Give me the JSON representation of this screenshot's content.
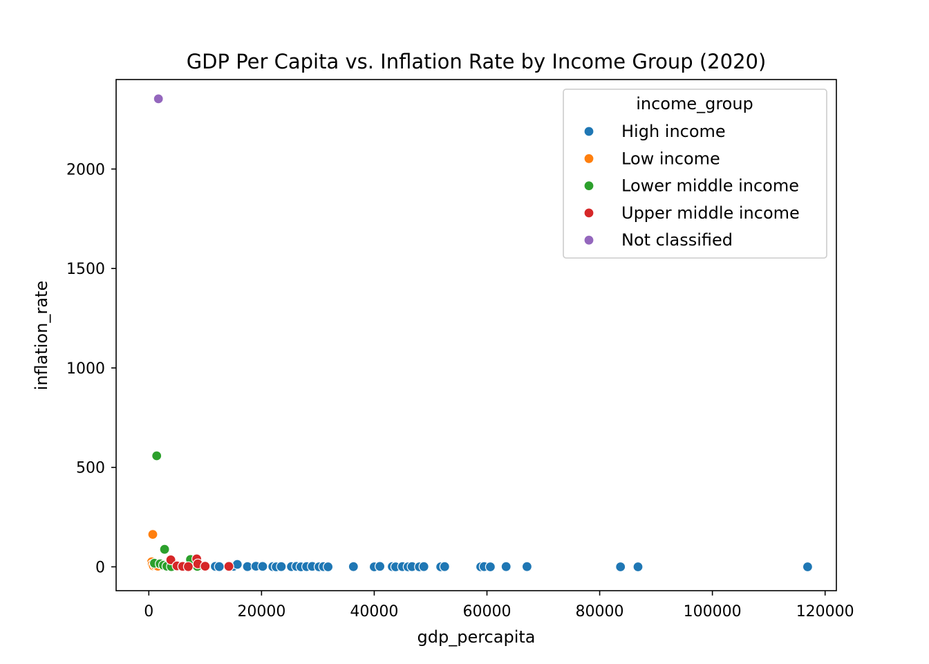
{
  "chart_data": {
    "type": "scatter",
    "title": "GDP Per Capita vs. Inflation Rate by Income Group (2020)",
    "xlabel": "gdp_percapita",
    "ylabel": "inflation_rate",
    "xlim": [
      -5800,
      122000
    ],
    "ylim": [
      -120,
      2450
    ],
    "xticks": [
      0,
      20000,
      40000,
      60000,
      80000,
      100000,
      120000
    ],
    "yticks": [
      0,
      500,
      1000,
      1500,
      2000
    ],
    "xtick_labels": [
      "0",
      "20000",
      "40000",
      "60000",
      "80000",
      "100000",
      "120000"
    ],
    "ytick_labels": [
      "0",
      "500",
      "1000",
      "1500",
      "2000"
    ],
    "grid": false,
    "legend": {
      "title": "income_group",
      "placement": "top-right"
    },
    "series": [
      {
        "name": "High income",
        "color": "#1f77b4",
        "points": [
          [
            8900,
            3
          ],
          [
            11800,
            2
          ],
          [
            12500,
            1
          ],
          [
            15000,
            2
          ],
          [
            15700,
            12
          ],
          [
            17500,
            1
          ],
          [
            19000,
            3
          ],
          [
            20200,
            2
          ],
          [
            22000,
            1
          ],
          [
            22600,
            0
          ],
          [
            23500,
            1
          ],
          [
            25300,
            1
          ],
          [
            26200,
            2
          ],
          [
            27000,
            0
          ],
          [
            28000,
            1
          ],
          [
            29000,
            2
          ],
          [
            30200,
            0
          ],
          [
            31000,
            1
          ],
          [
            31800,
            0
          ],
          [
            36300,
            1
          ],
          [
            40000,
            0
          ],
          [
            41000,
            2
          ],
          [
            43200,
            1
          ],
          [
            43800,
            0
          ],
          [
            45000,
            1
          ],
          [
            46000,
            0
          ],
          [
            46700,
            1
          ],
          [
            48000,
            0
          ],
          [
            48800,
            1
          ],
          [
            51800,
            0
          ],
          [
            52500,
            1
          ],
          [
            58900,
            0
          ],
          [
            59500,
            1
          ],
          [
            60600,
            0
          ],
          [
            63400,
            1
          ],
          [
            67100,
            1
          ],
          [
            83700,
            0
          ],
          [
            86800,
            0
          ],
          [
            116900,
            0
          ]
        ]
      },
      {
        "name": "Low income",
        "color": "#ff7f0e",
        "points": [
          [
            700,
            163
          ],
          [
            500,
            25
          ],
          [
            600,
            12
          ],
          [
            800,
            5
          ],
          [
            1100,
            8
          ],
          [
            1600,
            3
          ]
        ]
      },
      {
        "name": "Lower middle income",
        "color": "#2ca02c",
        "points": [
          [
            1400,
            558
          ],
          [
            2800,
            88
          ],
          [
            1000,
            18
          ],
          [
            2000,
            15
          ],
          [
            2600,
            8
          ],
          [
            3200,
            3
          ],
          [
            4000,
            1
          ],
          [
            7400,
            37
          ],
          [
            8600,
            2
          ]
        ]
      },
      {
        "name": "Upper middle income",
        "color": "#d62728",
        "points": [
          [
            3900,
            35
          ],
          [
            5000,
            5
          ],
          [
            6000,
            2
          ],
          [
            7000,
            1
          ],
          [
            8500,
            40
          ],
          [
            8700,
            15
          ],
          [
            10000,
            3
          ],
          [
            14200,
            2
          ]
        ]
      },
      {
        "name": "Not classified",
        "color": "#9467bd",
        "points": [
          [
            1700,
            2353
          ]
        ]
      }
    ]
  }
}
